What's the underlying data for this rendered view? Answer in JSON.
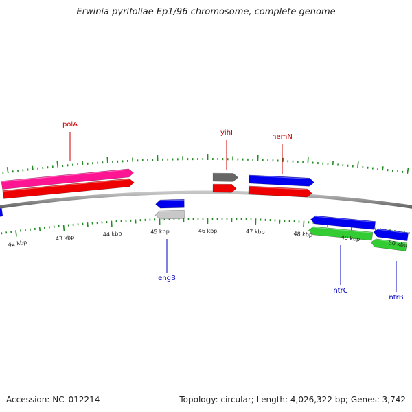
{
  "title": "Erwinia pyrifoliae Ep1/96 chromosome, complete genome",
  "footer": {
    "accession": "Accession: NC_012214",
    "summary": "Topology: circular; Length: 4,026,322 bp; Genes: 3,742"
  },
  "colors": {
    "backbone": "#8a8a8a",
    "tick": "#228b22",
    "forward_label": "#cc0000",
    "reverse_label": "#0000bb",
    "scale_label": "#222222"
  },
  "scale_labels": [
    "42 kbp",
    "43 kbp",
    "44 kbp",
    "45 kbp",
    "46 kbp",
    "47 kbp",
    "48 kbp",
    "49 kbp",
    "50 kbp"
  ],
  "gene_labels": {
    "forward": [
      "polA",
      "yihI",
      "hemN"
    ],
    "reverse": [
      "engB",
      "ntrC",
      "ntrB"
    ]
  },
  "features": [
    {
      "name": "polA",
      "strand": "forward",
      "color": "#ff1493"
    },
    {
      "name": "polA",
      "strand": "forward",
      "color": "#ee0000"
    },
    {
      "name": "yihI",
      "strand": "forward",
      "color": "#666666"
    },
    {
      "name": "yihI",
      "strand": "forward",
      "color": "#ee0000"
    },
    {
      "name": "hemN",
      "strand": "forward",
      "color": "#0000ee"
    },
    {
      "name": "hemN",
      "strand": "forward",
      "color": "#ee0000"
    },
    {
      "name": "engB",
      "strand": "reverse",
      "color": "#0000ee"
    },
    {
      "name": "engB",
      "strand": "reverse",
      "color": "#c8c8c8"
    },
    {
      "name": "ntrC",
      "strand": "reverse",
      "color": "#0000ee"
    },
    {
      "name": "ntrC",
      "strand": "reverse",
      "color": "#33cc33"
    },
    {
      "name": "ntrB",
      "strand": "reverse",
      "color": "#0000ee"
    },
    {
      "name": "ntrB",
      "strand": "reverse",
      "color": "#33cc33"
    },
    {
      "name": "",
      "strand": "reverse",
      "color": "#0000ee"
    }
  ]
}
